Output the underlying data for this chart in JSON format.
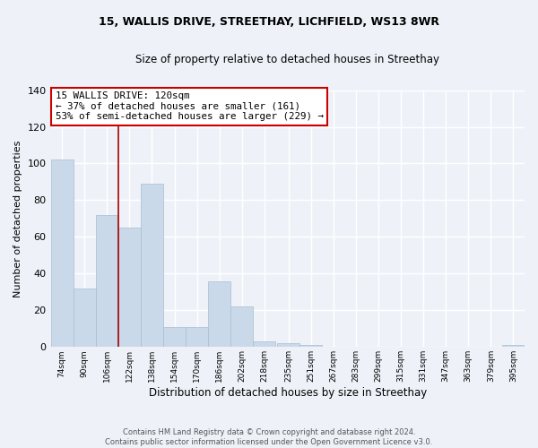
{
  "title1": "15, WALLIS DRIVE, STREETHAY, LICHFIELD, WS13 8WR",
  "title2": "Size of property relative to detached houses in Streethay",
  "xlabel": "Distribution of detached houses by size in Streethay",
  "ylabel": "Number of detached properties",
  "bins": [
    74,
    90,
    106,
    122,
    138,
    154,
    170,
    186,
    202,
    218,
    235,
    251,
    267,
    283,
    299,
    315,
    331,
    347,
    363,
    379,
    395
  ],
  "counts": [
    102,
    32,
    72,
    65,
    89,
    11,
    11,
    36,
    22,
    3,
    2,
    1,
    0,
    0,
    0,
    0,
    0,
    0,
    0,
    0,
    1
  ],
  "bar_color": "#c9d9ea",
  "bar_edge_color": "#a8bdd0",
  "vline_x": 122,
  "vline_color": "#aa0000",
  "annotation_text": "15 WALLIS DRIVE: 120sqm\n← 37% of detached houses are smaller (161)\n53% of semi-detached houses are larger (229) →",
  "annotation_box_color": "#ffffff",
  "annotation_box_edge": "#cc0000",
  "bg_color": "#eef2f8",
  "grid_color": "#ffffff",
  "footer1": "Contains HM Land Registry data © Crown copyright and database right 2024.",
  "footer2": "Contains public sector information licensed under the Open Government Licence v3.0.",
  "ylim": [
    0,
    140
  ],
  "bin_width": 16,
  "tick_labels": [
    "74sqm",
    "90sqm",
    "106sqm",
    "122sqm",
    "138sqm",
    "154sqm",
    "170sqm",
    "186sqm",
    "202sqm",
    "218sqm",
    "235sqm",
    "251sqm",
    "267sqm",
    "283sqm",
    "299sqm",
    "315sqm",
    "331sqm",
    "347sqm",
    "363sqm",
    "379sqm",
    "395sqm"
  ]
}
